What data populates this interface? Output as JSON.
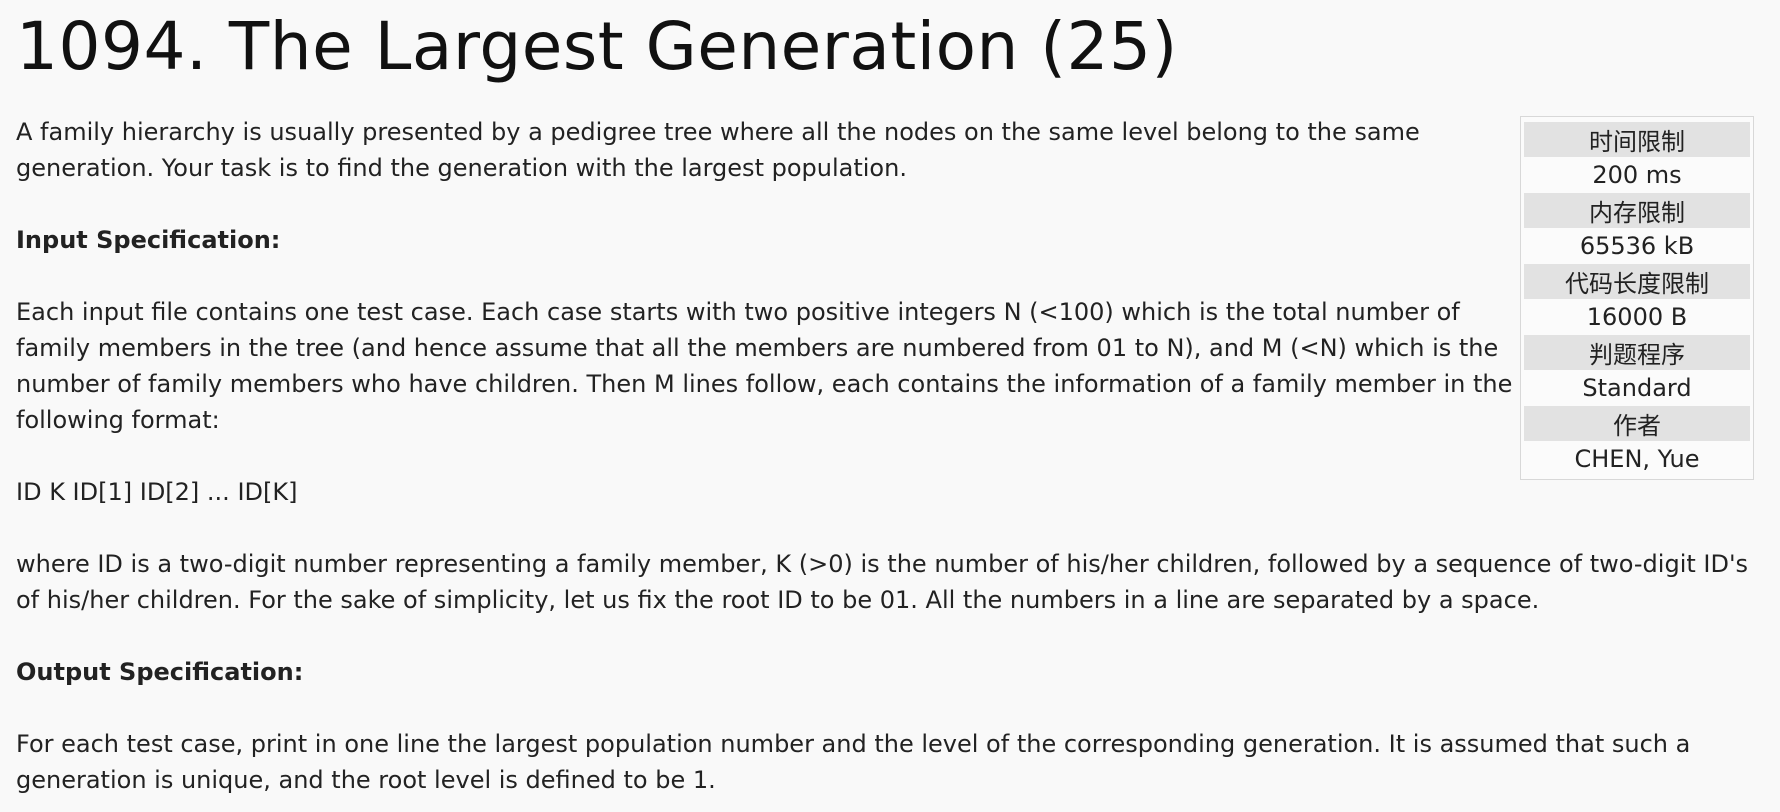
{
  "problem": {
    "title": "1094. The Largest Generation (25)"
  },
  "info": {
    "time_limit_label": "时间限制",
    "time_limit_value": "200 ms",
    "memory_limit_label": "内存限制",
    "memory_limit_value": "65536 kB",
    "code_length_label": "代码长度限制",
    "code_length_value": "16000 B",
    "judge_label": "判题程序",
    "judge_value": "Standard",
    "author_label": "作者",
    "author_value": "CHEN, Yue"
  },
  "description": {
    "intro": "A family hierarchy is usually presented by a pedigree tree where all the nodes on the same level belong to the same generation. Your task is to find the generation with the largest population.",
    "input_heading": "Input Specification:",
    "input_text": "Each input file contains one test case. Each case starts with two positive integers N (<100) which is the total number of family members in the tree (and hence assume that all the members are numbered from 01 to N), and M (<N) which is the number of family members who have children. Then M lines follow, each contains the information of a family member in the following format:",
    "format_line": "ID K ID[1] ID[2] ... ID[K]",
    "explanation": "where ID is a two-digit number representing a family member, K (>0) is the number of his/her children, followed by a sequence of two-digit ID's of his/her children. For the sake of simplicity, let us fix the root ID to be 01. All the numbers in a line are separated by a space.",
    "output_heading": "Output Specification:",
    "output_text": "For each test case, print in one line the largest population number and the level of the corresponding generation. It is assumed that such a generation is unique, and the root level is defined to be 1."
  }
}
